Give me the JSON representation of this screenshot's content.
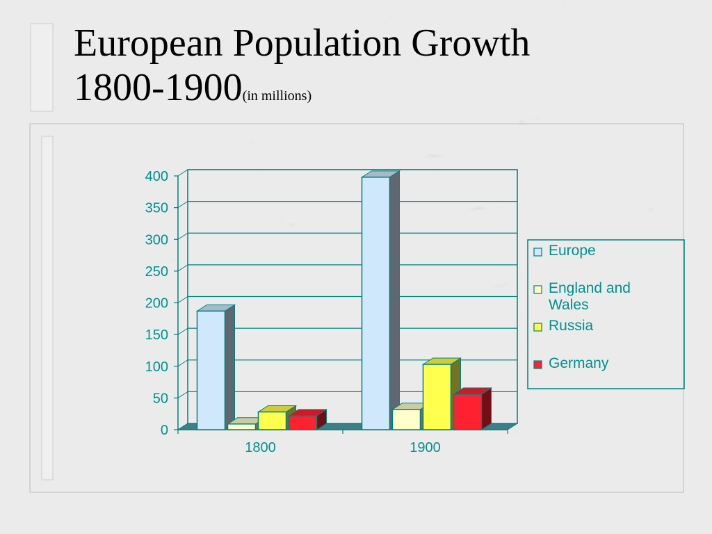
{
  "slide": {
    "title_line1": "European Population Growth",
    "title_line2": "1800-1900",
    "title_unit": "(in millions)"
  },
  "colors": {
    "axis": "#00807f",
    "tick_text": "#009090",
    "europe": "#cfe8fb",
    "england_and_wales": "#ffffcc",
    "russia": "#ffff4d",
    "germany": "#ff2030"
  },
  "chart_data": {
    "type": "bar",
    "style": "3d-clustered",
    "title": "",
    "xlabel": "",
    "ylabel": "",
    "categories": [
      "1800",
      "1900"
    ],
    "series": [
      {
        "name": "Europe",
        "values": [
          187,
          398
        ],
        "color": "#cfe8fb"
      },
      {
        "name": "England and Wales",
        "values": [
          9,
          32
        ],
        "color": "#ffffcc"
      },
      {
        "name": "Russia",
        "values": [
          28,
          103
        ],
        "color": "#ffff4d"
      },
      {
        "name": "Germany",
        "values": [
          22,
          56
        ],
        "color": "#ff2030"
      }
    ],
    "ylim": [
      0,
      400
    ],
    "yticks": [
      0,
      50,
      100,
      150,
      200,
      250,
      300,
      350,
      400
    ],
    "grid": true,
    "legend_position": "right",
    "legend": [
      "Europe",
      "England and Wales",
      "Russia",
      "Germany"
    ]
  }
}
